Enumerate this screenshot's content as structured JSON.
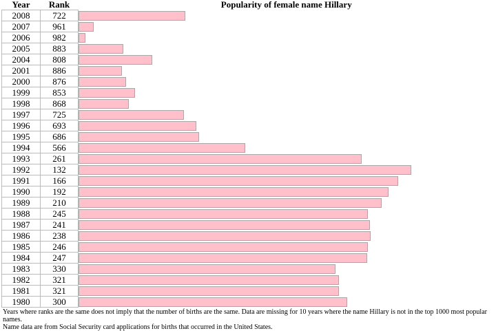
{
  "headers": {
    "year": "Year",
    "rank": "Rank"
  },
  "chart_data": {
    "type": "bar",
    "orientation": "horizontal",
    "title": "Popularity of female name Hillary",
    "bar_color": "#ffc0cb",
    "rank_max": 1000,
    "rows": [
      {
        "year": "2008",
        "rank": 722
      },
      {
        "year": "2007",
        "rank": 961
      },
      {
        "year": "2006",
        "rank": 982
      },
      {
        "year": "2005",
        "rank": 883
      },
      {
        "year": "2004",
        "rank": 808
      },
      {
        "year": "2001",
        "rank": 886
      },
      {
        "year": "2000",
        "rank": 876
      },
      {
        "year": "1999",
        "rank": 853
      },
      {
        "year": "1998",
        "rank": 868
      },
      {
        "year": "1997",
        "rank": 725
      },
      {
        "year": "1996",
        "rank": 693
      },
      {
        "year": "1995",
        "rank": 686
      },
      {
        "year": "1994",
        "rank": 566
      },
      {
        "year": "1993",
        "rank": 261
      },
      {
        "year": "1992",
        "rank": 132
      },
      {
        "year": "1991",
        "rank": 166
      },
      {
        "year": "1990",
        "rank": 192
      },
      {
        "year": "1989",
        "rank": 210
      },
      {
        "year": "1988",
        "rank": 245
      },
      {
        "year": "1987",
        "rank": 241
      },
      {
        "year": "1986",
        "rank": 238
      },
      {
        "year": "1985",
        "rank": 246
      },
      {
        "year": "1984",
        "rank": 247
      },
      {
        "year": "1983",
        "rank": 330
      },
      {
        "year": "1982",
        "rank": 321
      },
      {
        "year": "1981",
        "rank": 321
      },
      {
        "year": "1980",
        "rank": 300
      }
    ]
  },
  "footnote": {
    "line1": "Years where ranks are the same does not imply that the number of births are the same. Data are missing for 10 years where the name Hillary is not in the top 1000 most popular names.",
    "line2": "Name data are from Social Security card applications for births that occurred in the United States."
  }
}
